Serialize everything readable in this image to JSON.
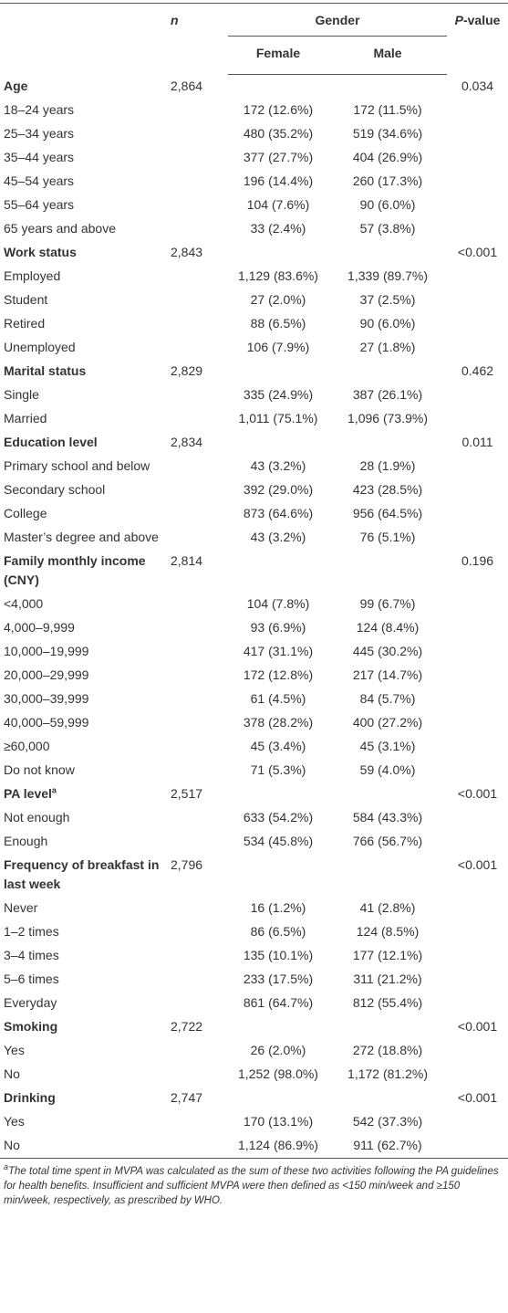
{
  "header": {
    "n": "n",
    "gender": "Gender",
    "female": "Female",
    "male": "Male",
    "p_italic": "P",
    "p_rest": "-value"
  },
  "sections": [
    {
      "title": "Age",
      "n": "2,864",
      "p": "0.034",
      "rows": [
        {
          "label": "18–24 years",
          "female": "172 (12.6%)",
          "male": "172 (11.5%)"
        },
        {
          "label": "25–34 years",
          "female": "480 (35.2%)",
          "male": "519 (34.6%)"
        },
        {
          "label": "35–44 years",
          "female": "377 (27.7%)",
          "male": "404 (26.9%)"
        },
        {
          "label": "45–54 years",
          "female": "196 (14.4%)",
          "male": "260 (17.3%)"
        },
        {
          "label": "55–64 years",
          "female": "104 (7.6%)",
          "male": "90 (6.0%)"
        },
        {
          "label": "65 years and above",
          "female": "33 (2.4%)",
          "male": "57 (3.8%)"
        }
      ]
    },
    {
      "title": "Work status",
      "n": "2,843",
      "p": "<0.001",
      "rows": [
        {
          "label": "Employed",
          "female": "1,129 (83.6%)",
          "male": "1,339 (89.7%)"
        },
        {
          "label": "Student",
          "female": "27 (2.0%)",
          "male": "37 (2.5%)"
        },
        {
          "label": "Retired",
          "female": "88 (6.5%)",
          "male": "90 (6.0%)"
        },
        {
          "label": "Unemployed",
          "female": "106 (7.9%)",
          "male": "27 (1.8%)"
        }
      ]
    },
    {
      "title": "Marital status",
      "n": "2,829",
      "p": "0.462",
      "rows": [
        {
          "label": "Single",
          "female": "335 (24.9%)",
          "male": "387 (26.1%)"
        },
        {
          "label": "Married",
          "female": "1,011 (75.1%)",
          "male": "1,096 (73.9%)"
        }
      ]
    },
    {
      "title": "Education level",
      "n": "2,834",
      "p": "0.011",
      "rows": [
        {
          "label": "Primary school and below",
          "female": "43 (3.2%)",
          "male": "28 (1.9%)"
        },
        {
          "label": "Secondary school",
          "female": "392 (29.0%)",
          "male": "423 (28.5%)"
        },
        {
          "label": "College",
          "female": "873 (64.6%)",
          "male": "956 (64.5%)"
        },
        {
          "label": "Master’s degree and above",
          "female": "43 (3.2%)",
          "male": "76 (5.1%)"
        }
      ]
    },
    {
      "title": "Family monthly income (CNY)",
      "n": "2,814",
      "p": "0.196",
      "rows": [
        {
          "label": "<4,000",
          "female": "104 (7.8%)",
          "male": "99 (6.7%)"
        },
        {
          "label": "4,000–9,999",
          "female": "93 (6.9%)",
          "male": "124 (8.4%)"
        },
        {
          "label": "10,000–19,999",
          "female": "417 (31.1%)",
          "male": "445 (30.2%)"
        },
        {
          "label": "20,000–29,999",
          "female": "172 (12.8%)",
          "male": "217 (14.7%)"
        },
        {
          "label": "30,000–39,999",
          "female": "61 (4.5%)",
          "male": "84 (5.7%)"
        },
        {
          "label": "40,000–59,999",
          "female": "378 (28.2%)",
          "male": "400 (27.2%)"
        },
        {
          "label": "≥60,000",
          "female": "45 (3.4%)",
          "male": "45 (3.1%)"
        },
        {
          "label": "Do not know",
          "female": "71 (5.3%)",
          "male": "59 (4.0%)"
        }
      ]
    },
    {
      "title": "PA level",
      "title_note": "a",
      "n": "2,517",
      "p": "<0.001",
      "rows": [
        {
          "label": "Not enough",
          "female": "633 (54.2%)",
          "male": "584 (43.3%)"
        },
        {
          "label": "Enough",
          "female": "534 (45.8%)",
          "male": "766 (56.7%)"
        }
      ]
    },
    {
      "title": "Frequency of breakfast in last week",
      "n": "2,796",
      "p": "<0.001",
      "rows": [
        {
          "label": "Never",
          "female": "16 (1.2%)",
          "male": "41 (2.8%)"
        },
        {
          "label": "1–2 times",
          "female": "86 (6.5%)",
          "male": "124 (8.5%)"
        },
        {
          "label": "3–4 times",
          "female": "135 (10.1%)",
          "male": "177 (12.1%)"
        },
        {
          "label": "5–6 times",
          "female": "233 (17.5%)",
          "male": "311 (21.2%)"
        },
        {
          "label": "Everyday",
          "female": "861 (64.7%)",
          "male": "812 (55.4%)"
        }
      ]
    },
    {
      "title": "Smoking",
      "n": "2,722",
      "p": "<0.001",
      "rows": [
        {
          "label": "Yes",
          "female": "26 (2.0%)",
          "male": "272 (18.8%)"
        },
        {
          "label": "No",
          "female": "1,252 (98.0%)",
          "male": "1,172 (81.2%)"
        }
      ]
    },
    {
      "title": "Drinking",
      "n": "2,747",
      "p": "<0.001",
      "rows": [
        {
          "label": "Yes",
          "female": "170 (13.1%)",
          "male": "542 (37.3%)"
        },
        {
          "label": "No",
          "female": "1,124 (86.9%)",
          "male": "911 (62.7%)"
        }
      ]
    }
  ],
  "footnote": {
    "marker": "a",
    "text": "The total time spent in MVPA was calculated as the sum of these two activities following the PA guidelines for health benefits. Insufficient and sufficient MVPA were then defined as <150 min/week and ≥150 min/week, respectively, as prescribed by WHO."
  }
}
